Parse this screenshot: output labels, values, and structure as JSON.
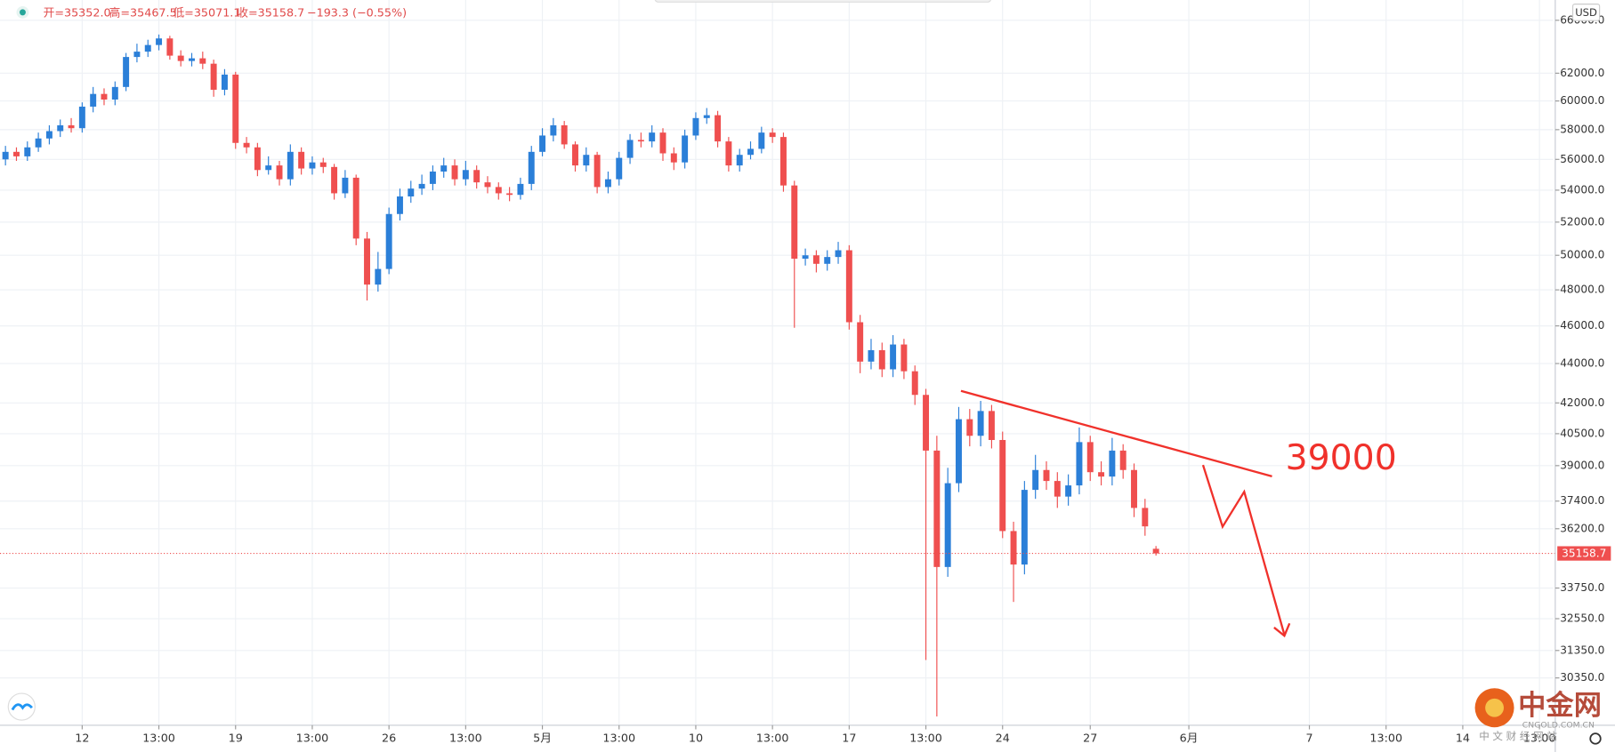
{
  "chart_data": {
    "type": "candlestick",
    "log_scale": true,
    "grid": true,
    "up_color": "#2b7fd8",
    "down_color": "#ef4f4f",
    "header": [
      "开=35352.0",
      "高=35467.5",
      "低=35071.1",
      "收=35158.7",
      "−193.3 (−0.55%)"
    ],
    "currency": "USD",
    "annotation": "39000",
    "watermark": {
      "title": "中金网",
      "site": "CNGOLD.COM.CN",
      "subtitle": "中 文 财 经 网 站"
    },
    "ylim": [
      28700,
      67600
    ],
    "yticks": [
      {
        "value": 66000,
        "label": "66000.0"
      },
      {
        "value": 62000,
        "label": "62000.0"
      },
      {
        "value": 60000,
        "label": "60000.0"
      },
      {
        "value": 58000,
        "label": "58000.0"
      },
      {
        "value": 56000,
        "label": "56000.0"
      },
      {
        "value": 54000,
        "label": "54000.0"
      },
      {
        "value": 52000,
        "label": "52000.0"
      },
      {
        "value": 50000,
        "label": "50000.0"
      },
      {
        "value": 48000,
        "label": "48000.0"
      },
      {
        "value": 46000,
        "label": "46000.0"
      },
      {
        "value": 44000,
        "label": "44000.0"
      },
      {
        "value": 42000,
        "label": "42000.0"
      },
      {
        "value": 40500,
        "label": "40500.0"
      },
      {
        "value": 39000,
        "label": "39000.0"
      },
      {
        "value": 37400,
        "label": "37400.0"
      },
      {
        "value": 36200,
        "label": "36200.0"
      },
      {
        "value": 33750,
        "label": "33750.0"
      },
      {
        "value": 32550,
        "label": "32550.0"
      },
      {
        "value": 31350,
        "label": "31350.0"
      },
      {
        "value": 30350,
        "label": "30350.0"
      }
    ],
    "categories": [
      null,
      null,
      null,
      null,
      null,
      null,
      null,
      "12",
      null,
      null,
      null,
      null,
      null,
      null,
      "13:00",
      null,
      null,
      null,
      null,
      null,
      null,
      "19",
      null,
      null,
      null,
      null,
      null,
      null,
      "13:00",
      null,
      null,
      null,
      null,
      null,
      null,
      "26",
      null,
      null,
      null,
      null,
      null,
      null,
      "13:00",
      null,
      null,
      null,
      null,
      null,
      null,
      "5月",
      null,
      null,
      null,
      null,
      null,
      null,
      "13:00",
      null,
      null,
      null,
      null,
      null,
      null,
      "10",
      null,
      null,
      null,
      null,
      null,
      null,
      "13:00",
      null,
      null,
      null,
      null,
      null,
      null,
      "17",
      null,
      null,
      null,
      null,
      null,
      null,
      "13:00",
      null,
      null,
      null,
      null,
      null,
      null,
      "24",
      null,
      null,
      null,
      null,
      null,
      null,
      null,
      "27",
      null,
      null,
      null,
      null,
      null,
      null,
      null,
      null,
      "6月",
      null,
      null,
      null,
      null,
      null,
      null,
      null,
      null,
      null,
      null,
      "7",
      null,
      null,
      null,
      null,
      null,
      null,
      "13:00",
      null,
      null,
      null,
      null,
      null,
      null,
      "14",
      null,
      null,
      null,
      null,
      null,
      null,
      "13:00"
    ],
    "open": [
      56000,
      56500,
      56200,
      56800,
      57400,
      57900,
      58300,
      58100,
      59600,
      60500,
      60100,
      61000,
      63200,
      63600,
      64100,
      64600,
      63300,
      62900,
      63100,
      62700,
      60800,
      61900,
      57100,
      56800,
      55300,
      55600,
      54700,
      56500,
      55400,
      55800,
      55500,
      53800,
      54800,
      51000,
      48300,
      49200,
      52500,
      53600,
      54100,
      54400,
      55200,
      55600,
      54700,
      55300,
      54500,
      54200,
      53800,
      53700,
      54400,
      56500,
      57600,
      58300,
      57000,
      55600,
      56300,
      54200,
      54700,
      56100,
      57300,
      57200,
      57800,
      56400,
      55800,
      57600,
      58800,
      59000,
      57200,
      55600,
      56300,
      56700,
      57800,
      57500,
      54300,
      49800,
      50000,
      49500,
      49900,
      50300,
      46200,
      44100,
      44700,
      43700,
      45000,
      43600,
      42400,
      39700,
      34600,
      38200,
      41200,
      40400,
      41600,
      40200,
      36100,
      34700,
      37900,
      38800,
      38300,
      37600,
      38100,
      40100,
      38700,
      38500,
      39700,
      38800,
      37100,
      35352,
      null,
      null,
      null,
      null,
      null,
      null,
      null,
      null,
      null,
      null,
      null,
      null,
      null,
      null,
      null,
      null,
      null,
      null,
      null,
      null,
      null,
      null,
      null,
      null,
      null,
      null,
      null,
      null,
      null,
      null,
      null,
      null,
      null,
      null,
      null
    ],
    "high": [
      56900,
      56800,
      57200,
      57800,
      58300,
      58700,
      58800,
      59900,
      61000,
      60900,
      61400,
      63500,
      64200,
      64500,
      64900,
      64800,
      63700,
      63500,
      63600,
      63000,
      62300,
      62100,
      57500,
      57100,
      56200,
      55900,
      57000,
      56800,
      56200,
      56100,
      55700,
      55300,
      55000,
      51400,
      50200,
      52900,
      54100,
      54600,
      55000,
      55600,
      56100,
      56000,
      55900,
      55600,
      54900,
      54500,
      54200,
      54800,
      56900,
      58100,
      58800,
      58600,
      57200,
      56800,
      56500,
      55200,
      56500,
      57700,
      57800,
      58300,
      58100,
      56800,
      58000,
      59200,
      59500,
      59300,
      57500,
      56700,
      57200,
      58200,
      58100,
      57800,
      54600,
      50400,
      50300,
      50300,
      50800,
      50600,
      46600,
      45300,
      45100,
      45500,
      45300,
      43900,
      42700,
      40400,
      38900,
      41800,
      41700,
      42100,
      41900,
      40600,
      36500,
      38300,
      39500,
      39200,
      38700,
      38600,
      40800,
      40400,
      39200,
      40300,
      40000,
      39100,
      37500,
      35467.5,
      null,
      null,
      null,
      null,
      null,
      null,
      null,
      null,
      null,
      null,
      null,
      null,
      null,
      null,
      null,
      null,
      null,
      null,
      null,
      null,
      null,
      null,
      null,
      null,
      null,
      null,
      null,
      null,
      null,
      null,
      null,
      null,
      null,
      null,
      null
    ],
    "low": [
      55600,
      55900,
      55900,
      56500,
      57000,
      57500,
      57800,
      57800,
      59200,
      59700,
      59700,
      60700,
      62800,
      63200,
      63700,
      63000,
      62500,
      62500,
      62300,
      60300,
      60400,
      56700,
      56400,
      54900,
      55000,
      54300,
      54300,
      55000,
      55000,
      55100,
      53400,
      53500,
      50600,
      47400,
      47900,
      48900,
      52100,
      53200,
      53700,
      54000,
      54800,
      54300,
      54300,
      54100,
      53800,
      53400,
      53300,
      53400,
      54000,
      56200,
      57200,
      56700,
      55200,
      55200,
      53800,
      53800,
      54300,
      55700,
      56800,
      56800,
      55900,
      55300,
      55400,
      57300,
      58400,
      56800,
      55200,
      55200,
      56000,
      56400,
      57100,
      53900,
      45900,
      49400,
      49000,
      49100,
      49500,
      45800,
      43500,
      43700,
      43300,
      43300,
      43200,
      41900,
      31000,
      29000,
      34200,
      37800,
      39900,
      39900,
      39800,
      35800,
      33200,
      34300,
      37500,
      37900,
      37100,
      37200,
      37700,
      38300,
      38100,
      38100,
      38400,
      36700,
      35900,
      35071.1,
      null,
      null,
      null,
      null,
      null,
      null,
      null,
      null,
      null,
      null,
      null,
      null,
      null,
      null,
      null,
      null,
      null,
      null,
      null,
      null,
      null,
      null,
      null,
      null,
      null,
      null,
      null,
      null,
      null,
      null,
      null,
      null,
      null,
      null,
      null
    ],
    "close": [
      56500,
      56200,
      56800,
      57400,
      57900,
      58300,
      58100,
      59600,
      60500,
      60100,
      61000,
      63200,
      63600,
      64100,
      64600,
      63300,
      62900,
      63100,
      62700,
      60800,
      61900,
      57100,
      56800,
      55300,
      55600,
      54700,
      56500,
      55400,
      55800,
      55500,
      53800,
      54800,
      51000,
      48300,
      49200,
      52500,
      53600,
      54100,
      54400,
      55200,
      55600,
      54700,
      55300,
      54500,
      54200,
      53800,
      53700,
      54400,
      56500,
      57600,
      58300,
      57000,
      55600,
      56300,
      54200,
      54700,
      56100,
      57300,
      57200,
      57800,
      56400,
      55800,
      57600,
      58800,
      59000,
      57200,
      55600,
      56300,
      56700,
      57800,
      57500,
      54300,
      49800,
      50000,
      49500,
      49900,
      50300,
      46200,
      44100,
      44700,
      43700,
      45000,
      43600,
      42400,
      39700,
      34600,
      38200,
      41200,
      40400,
      41600,
      40200,
      36100,
      34700,
      37900,
      38800,
      38300,
      37600,
      38100,
      40100,
      38700,
      38500,
      39700,
      38800,
      37100,
      36300,
      35158.7,
      null,
      null,
      null,
      null,
      null,
      null,
      null,
      null,
      null,
      null,
      null,
      null,
      null,
      null,
      null,
      null,
      null,
      null,
      null,
      null,
      null,
      null,
      null,
      null,
      null,
      null,
      null,
      null,
      null,
      null,
      null,
      null,
      null,
      null,
      null
    ]
  }
}
